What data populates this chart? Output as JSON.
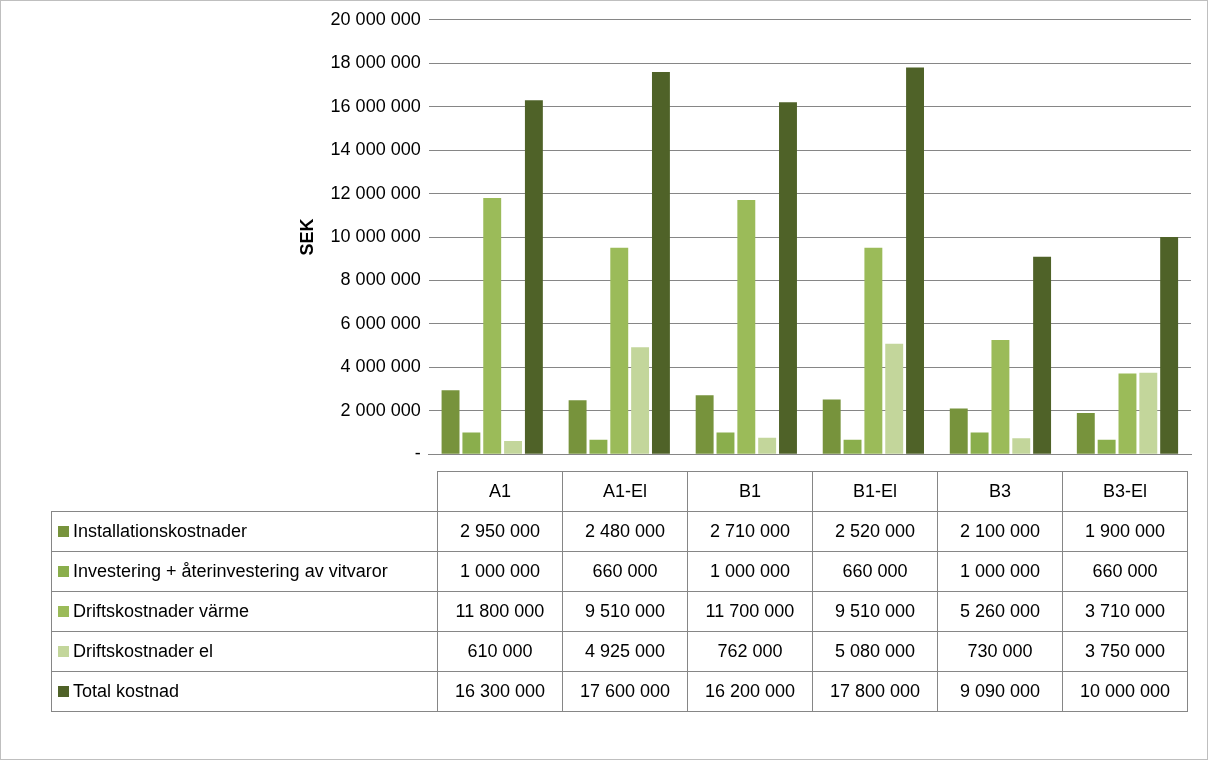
{
  "chart_data": {
    "type": "bar",
    "ylabel": "SEK",
    "categories": [
      "A1",
      "A1-El",
      "B1",
      "B1-El",
      "B3",
      "B3-El"
    ],
    "series": [
      {
        "name": "Installationskostnader",
        "color": "#77933c",
        "values": [
          2950000,
          2480000,
          2710000,
          2520000,
          2100000,
          1900000
        ]
      },
      {
        "name": "Investering + återinvestering av vitvaror",
        "color": "#8aae4c",
        "values": [
          1000000,
          660000,
          1000000,
          660000,
          1000000,
          660000
        ]
      },
      {
        "name": "Driftskostnader värme",
        "color": "#9bbb59",
        "values": [
          11800000,
          9510000,
          11700000,
          9510000,
          5260000,
          3710000
        ]
      },
      {
        "name": "Driftskostnader el",
        "color": "#c3d69b",
        "values": [
          610000,
          4925000,
          762000,
          5080000,
          730000,
          3750000
        ]
      },
      {
        "name": "Total kostnad",
        "color": "#4f6228",
        "values": [
          16300000,
          17600000,
          16200000,
          17800000,
          9090000,
          10000000
        ]
      }
    ],
    "ylim": [
      0,
      20000000
    ],
    "yticks": [
      {
        "value": 0,
        "label": "-"
      },
      {
        "value": 2000000,
        "label": "2 000 000"
      },
      {
        "value": 4000000,
        "label": "4 000 000"
      },
      {
        "value": 6000000,
        "label": "6 000 000"
      },
      {
        "value": 8000000,
        "label": "8 000 000"
      },
      {
        "value": 10000000,
        "label": "10 000 000"
      },
      {
        "value": 12000000,
        "label": "12 000 000"
      },
      {
        "value": 14000000,
        "label": "14 000 000"
      },
      {
        "value": 16000000,
        "label": "16 000 000"
      },
      {
        "value": 18000000,
        "label": "18 000 000"
      },
      {
        "value": 20000000,
        "label": "20 000 000"
      }
    ],
    "grid": "y",
    "legend": "bottom",
    "data_labels": true
  }
}
